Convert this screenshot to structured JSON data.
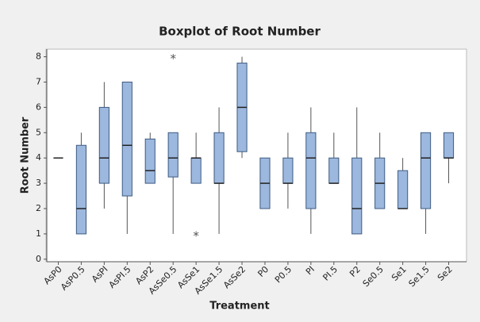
{
  "chart_data": {
    "type": "boxplot",
    "title": "Boxplot of Root Number",
    "x_label": "Treatment",
    "y_label": "Root Number",
    "categories": [
      "AsP0",
      "AsP0.5",
      "AsPI",
      "AsPI.5",
      "AsP2",
      "AsSe0.5",
      "AsSe1",
      "AsSe1.5",
      "AsSe2",
      "P0",
      "P0.5",
      "PI",
      "PI.5",
      "P2",
      "Se0.5",
      "Se1",
      "Se1.5",
      "Se2"
    ],
    "boxes": [
      {
        "min": 4,
        "q1": 4,
        "median": 4,
        "q3": 4,
        "max": 4,
        "outliers": []
      },
      {
        "min": 1,
        "q1": 1,
        "median": 2,
        "q3": 4.5,
        "max": 5,
        "outliers": []
      },
      {
        "min": 2,
        "q1": 3,
        "median": 4,
        "q3": 6,
        "max": 7,
        "outliers": []
      },
      {
        "min": 1,
        "q1": 2.5,
        "median": 4.5,
        "q3": 7,
        "max": 7,
        "outliers": []
      },
      {
        "min": 3,
        "q1": 3,
        "median": 3.5,
        "q3": 4.75,
        "max": 5,
        "outliers": []
      },
      {
        "min": 1,
        "q1": 3.25,
        "median": 4,
        "q3": 5,
        "max": 5,
        "outliers": [
          8
        ]
      },
      {
        "min": 3,
        "q1": 3,
        "median": 4,
        "q3": 4,
        "max": 5,
        "outliers": [
          1
        ]
      },
      {
        "min": 1,
        "q1": 3,
        "median": 3,
        "q3": 5,
        "max": 6,
        "outliers": []
      },
      {
        "min": 4,
        "q1": 4.25,
        "median": 6,
        "q3": 7.75,
        "max": 8,
        "outliers": []
      },
      {
        "min": 2,
        "q1": 2,
        "median": 3,
        "q3": 4,
        "max": 4,
        "outliers": []
      },
      {
        "min": 2,
        "q1": 3,
        "median": 3,
        "q3": 4,
        "max": 5,
        "outliers": []
      },
      {
        "min": 1,
        "q1": 2,
        "median": 4,
        "q3": 5,
        "max": 6,
        "outliers": []
      },
      {
        "min": 3,
        "q1": 3,
        "median": 3,
        "q3": 4,
        "max": 5,
        "outliers": []
      },
      {
        "min": 1,
        "q1": 1,
        "median": 2,
        "q3": 4,
        "max": 6,
        "outliers": []
      },
      {
        "min": 2,
        "q1": 2,
        "median": 3,
        "q3": 4,
        "max": 5,
        "outliers": []
      },
      {
        "min": 2,
        "q1": 2,
        "median": 2,
        "q3": 3.5,
        "max": 4,
        "outliers": []
      },
      {
        "min": 1,
        "q1": 2,
        "median": 4,
        "q3": 5,
        "max": 5,
        "outliers": []
      },
      {
        "min": 3,
        "q1": 4,
        "median": 4,
        "q3": 5,
        "max": 5,
        "outliers": []
      }
    ],
    "color": "#9db8de",
    "ylim": [
      -0.1,
      8.3
    ],
    "yticks": [
      0,
      1,
      2,
      3,
      4,
      5,
      6,
      7,
      8
    ]
  }
}
